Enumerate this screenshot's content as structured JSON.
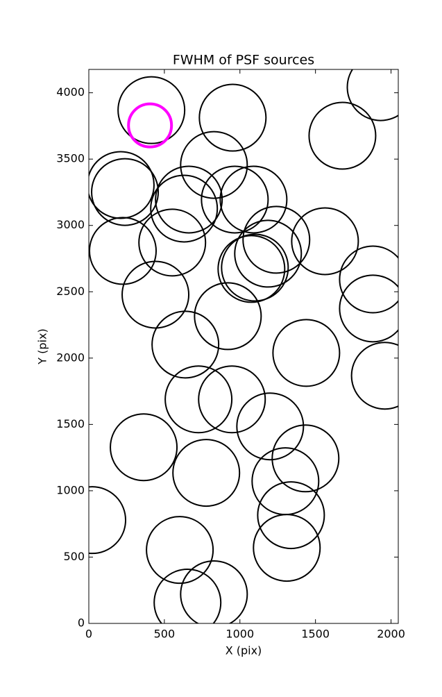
{
  "chart_data": {
    "type": "scatter",
    "title": "FWHM of PSF sources",
    "x_label": "X (pix)",
    "y_label": "Y (pix)",
    "xlim": [
      0,
      2048
    ],
    "ylim": [
      0,
      4176
    ],
    "xticks": [
      0,
      500,
      1000,
      1500,
      2000
    ],
    "yticks": [
      0,
      500,
      1000,
      1500,
      2000,
      2500,
      3000,
      3500,
      4000
    ],
    "grid": false,
    "series": [
      {
        "color": "#000000",
        "marker_size": 48,
        "x": [
          414,
          952,
          1931,
          1678,
          828,
          211,
          239,
          630,
          662,
          966,
          1090,
          552,
          225,
          1241,
          1186,
          1076,
          1099,
          1563,
          1880,
          1880,
          441,
          920,
          639,
          1439,
          1959,
          726,
          947,
          1200,
          363,
          777,
          1434,
          1301,
          1338,
          23,
          602,
          1310,
          653,
          828
        ],
        "values": [
          3869,
          3812,
          4042,
          3676,
          3456,
          3305,
          3252,
          3127,
          3195,
          3195,
          3195,
          2871,
          2808,
          2892,
          2787,
          2672,
          2682,
          2881,
          2593,
          2374,
          2478,
          2316,
          2102,
          2039,
          1867,
          1689,
          1689,
          1485,
          1328,
          1135,
          1244,
          1072,
          816,
          779,
          554,
          570,
          157,
          220
        ]
      },
      {
        "color": "#ff00ff",
        "marker_size": 31,
        "x": [
          405
        ],
        "values": [
          3754
        ]
      }
    ]
  }
}
